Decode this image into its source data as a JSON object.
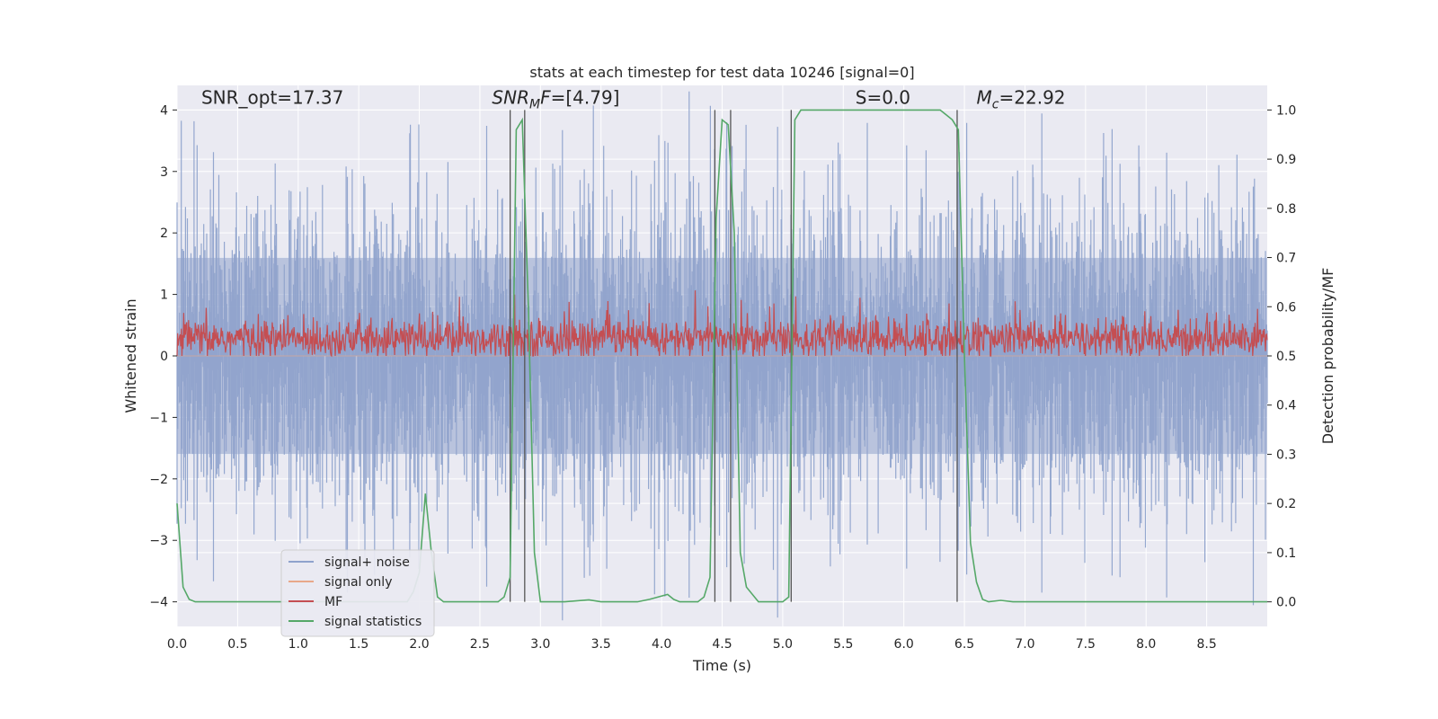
{
  "chart_data": {
    "type": "line",
    "title": "stats at each timestep for test data 10246 [signal=0]",
    "xlabel": "Time (s)",
    "ylabel": "Whitened strain",
    "y2label": "Detection probability/MF",
    "xlim": [
      0.0,
      9.0
    ],
    "ylim": [
      -4.4,
      4.4
    ],
    "y2lim": [
      -0.05,
      1.05
    ],
    "xticks": [
      0.0,
      0.5,
      1.0,
      1.5,
      2.0,
      2.5,
      3.0,
      3.5,
      4.0,
      4.5,
      5.0,
      5.5,
      6.0,
      6.5,
      7.0,
      7.5,
      8.0,
      8.5
    ],
    "xtick_labels": [
      "0.0",
      "0.5",
      "1.0",
      "1.5",
      "2.0",
      "2.5",
      "3.0",
      "3.5",
      "4.0",
      "4.5",
      "5.0",
      "5.5",
      "6.0",
      "6.5",
      "7.0",
      "7.5",
      "8.0",
      "8.5"
    ],
    "yticks": [
      -4,
      -3,
      -2,
      -1,
      0,
      1,
      2,
      3,
      4
    ],
    "ytick_labels": [
      "−4",
      "−3",
      "−2",
      "−1",
      "0",
      "1",
      "2",
      "3",
      "4"
    ],
    "y2ticks": [
      0.0,
      0.1,
      0.2,
      0.3,
      0.4,
      0.5,
      0.6,
      0.7,
      0.8,
      0.9,
      1.0
    ],
    "y2tick_labels": [
      "0.0",
      "0.1",
      "0.2",
      "0.3",
      "0.4",
      "0.5",
      "0.6",
      "0.7",
      "0.8",
      "0.9",
      "1.0"
    ],
    "grid": true,
    "legend_position": "lower-left",
    "annotations": [
      {
        "text": "SNR_opt=17.37",
        "x": 0.2
      },
      {
        "text": "SNR_MF=[4.79]",
        "x": 2.6
      },
      {
        "text": "S=0.0",
        "x": 5.6
      },
      {
        "text": "M_c=22.92",
        "x": 6.6
      }
    ],
    "annotation_y": 4.1,
    "vlines": [
      2.75,
      2.87,
      4.44,
      4.57,
      5.07,
      6.44
    ],
    "vline_range": [
      0.0,
      1.0
    ],
    "series": [
      {
        "name": "signal+ noise",
        "color": "#8fa3cc",
        "axis": "left",
        "kind": "noise",
        "amplitude_sd": 1.0,
        "n": 1800,
        "t_range": [
          0.0,
          9.0
        ]
      },
      {
        "name": "signal only",
        "color": "#e8a88a",
        "axis": "left",
        "kind": "flat",
        "value": 0.0
      },
      {
        "name": "MF",
        "color": "#c44e52",
        "axis": "right",
        "kind": "noise",
        "mean": 0.535,
        "amplitude_sd": 0.02,
        "n": 1800,
        "t_range": [
          0.0,
          9.0
        ]
      },
      {
        "name": "signal statistics",
        "color": "#55a868",
        "axis": "right",
        "kind": "line",
        "x": [
          0.0,
          0.05,
          0.1,
          0.15,
          0.2,
          0.5,
          1.0,
          1.5,
          1.9,
          1.95,
          2.0,
          2.05,
          2.1,
          2.15,
          2.2,
          2.25,
          2.5,
          2.65,
          2.7,
          2.75,
          2.8,
          2.85,
          2.9,
          2.95,
          3.0,
          3.05,
          3.2,
          3.4,
          3.5,
          3.8,
          3.9,
          4.05,
          4.1,
          4.15,
          4.2,
          4.3,
          4.35,
          4.4,
          4.45,
          4.5,
          4.55,
          4.6,
          4.65,
          4.7,
          4.8,
          4.9,
          5.0,
          5.05,
          5.1,
          5.15,
          5.2,
          5.5,
          6.0,
          6.3,
          6.35,
          6.4,
          6.45,
          6.5,
          6.55,
          6.6,
          6.65,
          6.7,
          6.8,
          6.9,
          7.0,
          7.5,
          8.0,
          9.0
        ],
        "y": [
          0.2,
          0.03,
          0.005,
          0.0,
          0.0,
          0.0,
          0.0,
          0.0,
          0.0,
          0.02,
          0.06,
          0.22,
          0.1,
          0.01,
          0.0,
          0.0,
          0.0,
          0.0,
          0.01,
          0.05,
          0.96,
          0.98,
          0.6,
          0.1,
          0.0,
          0.0,
          0.0,
          0.004,
          0.0,
          0.0,
          0.005,
          0.015,
          0.005,
          0.0,
          0.0,
          0.0,
          0.01,
          0.05,
          0.78,
          0.98,
          0.97,
          0.75,
          0.1,
          0.03,
          0.0,
          0.0,
          0.0,
          0.01,
          0.98,
          1.0,
          1.0,
          1.0,
          1.0,
          1.0,
          0.99,
          0.98,
          0.96,
          0.5,
          0.12,
          0.04,
          0.005,
          0.0,
          0.003,
          0.0,
          0.0,
          0.0,
          0.0,
          0.0
        ]
      }
    ]
  }
}
